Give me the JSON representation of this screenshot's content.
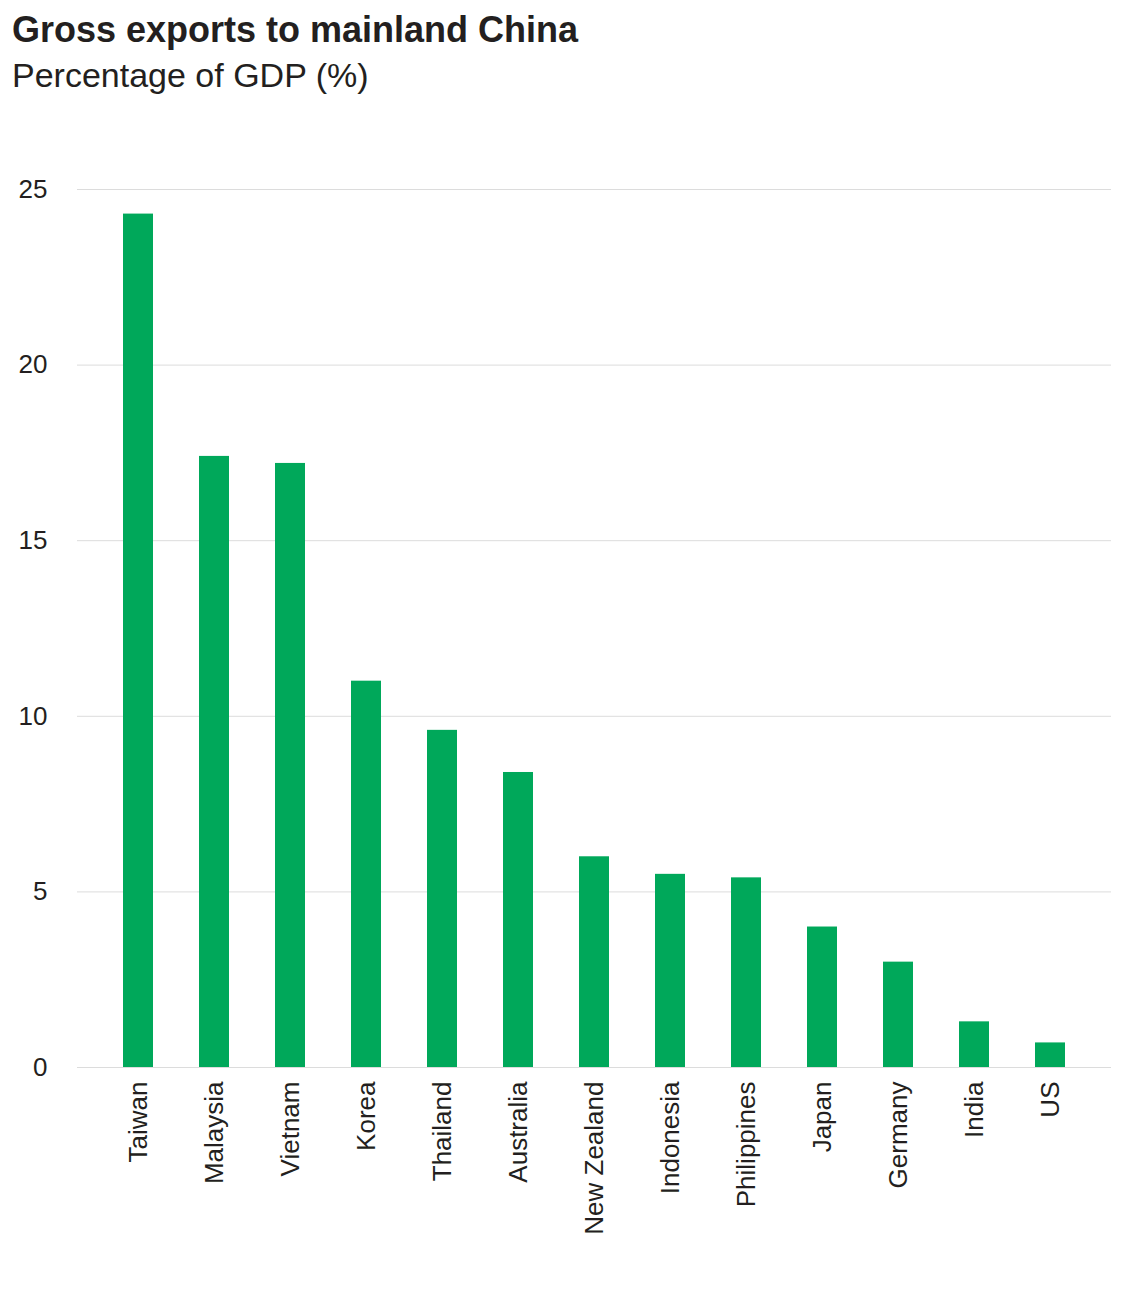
{
  "chart_data": {
    "type": "bar",
    "title": "Gross exports to mainland China",
    "subtitle": "Percentage of GDP (%)",
    "categories": [
      "Taiwan",
      "Malaysia",
      "Vietnam",
      "Korea",
      "Thailand",
      "Australia",
      "New Zealand",
      "Indonesia",
      "Philippines",
      "Japan",
      "Germany",
      "India",
      "US"
    ],
    "values": [
      24.3,
      17.4,
      17.2,
      11.0,
      9.6,
      8.4,
      6.0,
      5.5,
      5.4,
      4.0,
      3.0,
      1.3,
      0.7
    ],
    "color": "#00a85a",
    "ylim": [
      0,
      25
    ],
    "yticks": [
      0,
      5,
      10,
      15,
      20,
      25
    ],
    "grid": true
  }
}
